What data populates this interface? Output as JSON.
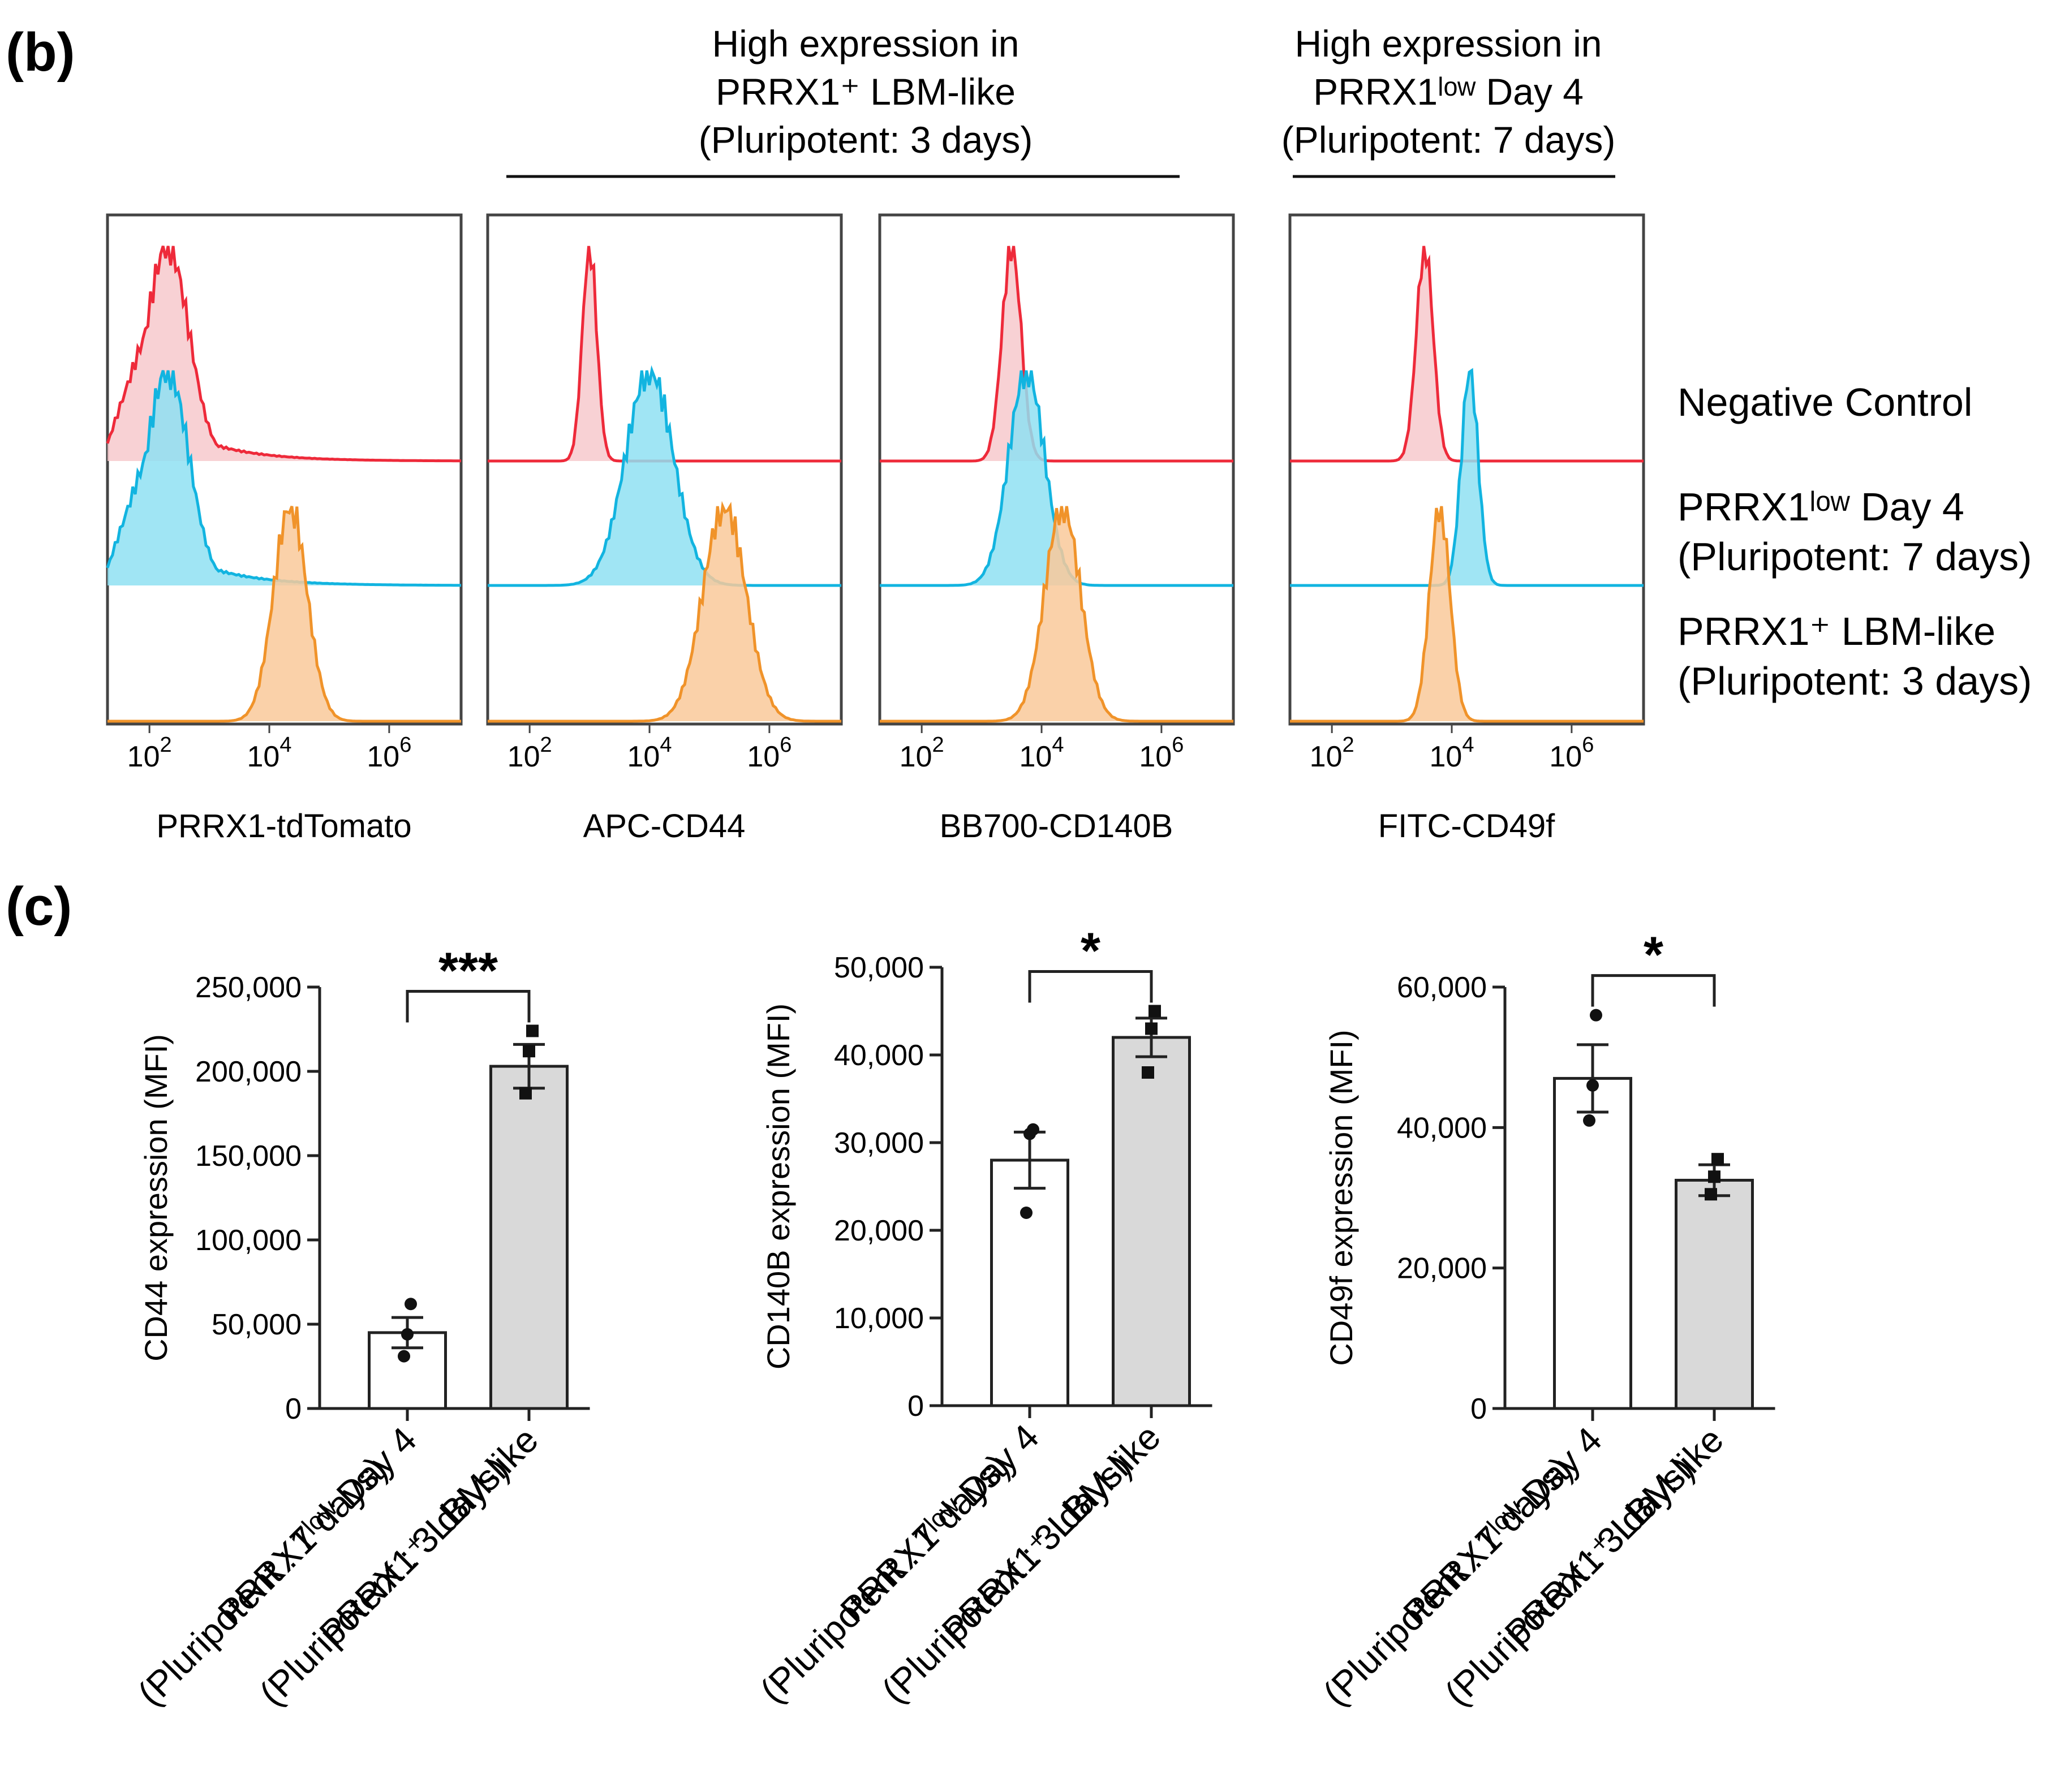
{
  "panel_b": {
    "label": "(b)",
    "groups": [
      {
        "lines": [
          "High expression in",
          "PRRX1⁺ LBM-like",
          "(Pluripotent: 3 days)"
        ]
      },
      {
        "lines": [
          "High expression in",
          "PRRX1ˡᵒʷ Day 4",
          "(Pluripotent: 7 days)"
        ]
      }
    ],
    "legend": [
      {
        "lines": [
          "Negative Control"
        ],
        "color": "#ee2a3a",
        "fill": "#f7c9cd"
      },
      {
        "lines": [
          "PRRX1ˡᵒʷ Day 4",
          "(Pluripotent: 7 days)"
        ],
        "color": "#12b4e0",
        "fill": "#8fe0f2"
      },
      {
        "lines": [
          "PRRX1⁺ LBM-like",
          "(Pluripotent: 3 days)"
        ],
        "color": "#f0932a",
        "fill": "#f9c99a"
      }
    ]
  },
  "panel_c": {
    "label": "(c)"
  },
  "chart_data": [
    {
      "type": "histogram",
      "xlabel": "PRRX1-tdTomato",
      "xscale": "log",
      "xlim_log10": [
        1.3,
        7.2
      ],
      "ticks": [
        {
          "base": "10",
          "exp": "2",
          "v": 2
        },
        {
          "base": "10",
          "exp": "4",
          "v": 4
        },
        {
          "base": "10",
          "exp": "6",
          "v": 6
        }
      ],
      "series": [
        {
          "name": "Negative Control",
          "kind": "broad",
          "peak_log10": 2.3,
          "width": 0.8,
          "offset": 2
        },
        {
          "name": "PRRX1low Day 4 (Pluripotent: 7 days)",
          "kind": "broad",
          "peak_log10": 2.3,
          "width": 0.8,
          "offset": 1
        },
        {
          "name": "PRRX1+ LBM-like (Pluripotent: 3 days)",
          "kind": "normal",
          "peak_log10": 4.35,
          "width": 0.28,
          "offset": 0
        }
      ]
    },
    {
      "type": "histogram",
      "xlabel": "APC-CD44",
      "xscale": "log",
      "xlim_log10": [
        1.3,
        7.2
      ],
      "ticks": [
        {
          "base": "10",
          "exp": "2",
          "v": 2
        },
        {
          "base": "10",
          "exp": "4",
          "v": 4
        },
        {
          "base": "10",
          "exp": "6",
          "v": 6
        }
      ],
      "series": [
        {
          "name": "Negative Control",
          "kind": "normal",
          "peak_log10": 3.0,
          "width": 0.12,
          "offset": 2
        },
        {
          "name": "PRRX1low Day 4 (Pluripotent: 7 days)",
          "kind": "normal",
          "peak_log10": 4.0,
          "width": 0.4,
          "offset": 1
        },
        {
          "name": "PRRX1+ LBM-like (Pluripotent: 3 days)",
          "kind": "normal",
          "peak_log10": 5.25,
          "width": 0.36,
          "offset": 0
        }
      ]
    },
    {
      "type": "histogram",
      "xlabel": "BB700-CD140B",
      "xscale": "log",
      "xlim_log10": [
        1.3,
        7.2
      ],
      "ticks": [
        {
          "base": "10",
          "exp": "2",
          "v": 2
        },
        {
          "base": "10",
          "exp": "4",
          "v": 4
        },
        {
          "base": "10",
          "exp": "6",
          "v": 6
        }
      ],
      "series": [
        {
          "name": "Negative Control",
          "kind": "normal",
          "peak_log10": 3.5,
          "width": 0.16,
          "offset": 2
        },
        {
          "name": "PRRX1low Day 4 (Pluripotent: 7 days)",
          "kind": "normal",
          "peak_log10": 3.75,
          "width": 0.3,
          "offset": 1
        },
        {
          "name": "PRRX1+ LBM-like (Pluripotent: 3 days)",
          "kind": "normal",
          "peak_log10": 4.35,
          "width": 0.3,
          "offset": 0
        }
      ]
    },
    {
      "type": "histogram",
      "xlabel": "FITC-CD49f",
      "xscale": "log",
      "xlim_log10": [
        1.3,
        7.2
      ],
      "ticks": [
        {
          "base": "10",
          "exp": "2",
          "v": 2
        },
        {
          "base": "10",
          "exp": "4",
          "v": 4
        },
        {
          "base": "10",
          "exp": "6",
          "v": 6
        }
      ],
      "series": [
        {
          "name": "Negative Control",
          "kind": "normal",
          "peak_log10": 3.55,
          "width": 0.14,
          "offset": 2
        },
        {
          "name": "PRRX1low Day 4 (Pluripotent: 7 days)",
          "kind": "normal",
          "peak_log10": 4.3,
          "width": 0.14,
          "offset": 1
        },
        {
          "name": "PRRX1+ LBM-like (Pluripotent: 3 days)",
          "kind": "normal",
          "peak_log10": 3.8,
          "width": 0.17,
          "offset": 0
        }
      ]
    },
    {
      "type": "bar",
      "ylabel": "CD44 expression (MFI)",
      "ylim": [
        0,
        250000
      ],
      "yticks": [
        0,
        50000,
        100000,
        150000,
        200000,
        250000
      ],
      "ytick_labels": [
        "0",
        "50,000",
        "100,000",
        "150,000",
        "200,000",
        "250,000"
      ],
      "significance": "***",
      "categories": [
        {
          "lines": [
            "PRRX1ˡᵒʷ Day 4",
            "(Pluripotent : 7 days)"
          ]
        },
        {
          "lines": [
            "PRRX1⁺ LBM-like",
            "(Pluripotent : 3 days)"
          ]
        }
      ],
      "values": [
        45000,
        203000
      ],
      "errors": [
        9000,
        13000
      ],
      "fills": [
        "#ffffff",
        "#d9d9d9"
      ],
      "points": [
        [
          31000,
          44000,
          62000
        ],
        [
          187000,
          212000,
          224000
        ]
      ]
    },
    {
      "type": "bar",
      "ylabel": "CD140B expression (MFI)",
      "ylim": [
        0,
        50000
      ],
      "yticks": [
        0,
        10000,
        20000,
        30000,
        40000,
        50000
      ],
      "ytick_labels": [
        "0",
        "10,000",
        "20,000",
        "30,000",
        "40,000",
        "50,000"
      ],
      "significance": "*",
      "categories": [
        {
          "lines": [
            "PRRX1ˡᵒʷ Day 4",
            "(Pluripotent : 7 days)"
          ]
        },
        {
          "lines": [
            "PRRX1⁺ LBM-like",
            "(Pluripotent : 3 days)"
          ]
        }
      ],
      "values": [
        28000,
        42000
      ],
      "errors": [
        3200,
        2200
      ],
      "fills": [
        "#ffffff",
        "#d9d9d9"
      ],
      "points": [
        [
          22000,
          31000,
          31500
        ],
        [
          38000,
          43000,
          45000
        ]
      ]
    },
    {
      "type": "bar",
      "ylabel": "CD49f expression (MFI)",
      "ylim": [
        0,
        60000
      ],
      "yticks": [
        0,
        20000,
        40000,
        60000
      ],
      "ytick_labels": [
        "0",
        "20,000",
        "40,000",
        "60,000"
      ],
      "significance": "*",
      "categories": [
        {
          "lines": [
            "PRRX1ˡᵒʷ Day 4",
            "(Pluripotent : 7 days)"
          ]
        },
        {
          "lines": [
            "PRRX1⁺ LBM-like",
            "(Pluripotent : 3 days)"
          ]
        }
      ],
      "values": [
        47000,
        32500
      ],
      "errors": [
        4800,
        2200
      ],
      "fills": [
        "#ffffff",
        "#d9d9d9"
      ],
      "points": [
        [
          41000,
          46000,
          56000
        ],
        [
          30500,
          33000,
          35500
        ]
      ]
    }
  ]
}
